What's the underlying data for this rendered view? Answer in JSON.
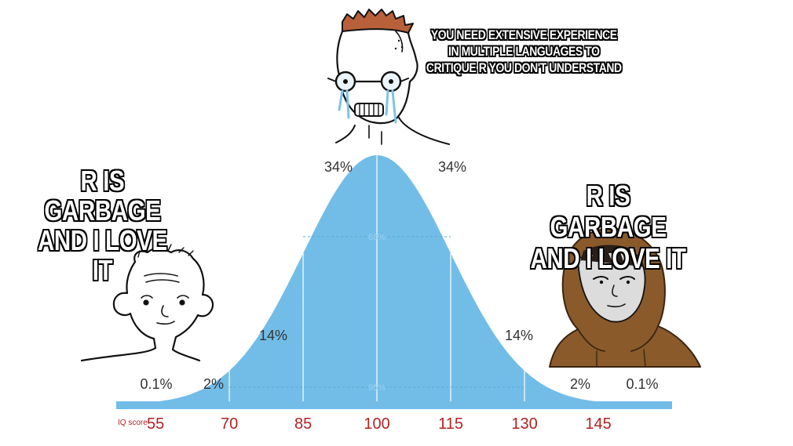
{
  "captions": {
    "left": [
      "R IS GARBAGE",
      "AND I LOVE IT"
    ],
    "right": [
      "R IS GARBAGE",
      "AND I LOVE IT"
    ],
    "top": [
      "YOU NEED EXTENSIVE EXPERIENCE",
      "IN MULTIPLE LANGUAGES TO",
      "CRITIQUE R YOU DON'T UNDERSTAND"
    ]
  },
  "chart_data": {
    "type": "area",
    "title": "",
    "xlabel": "IQ score",
    "ylabel": "",
    "x_ticks": [
      55,
      70,
      85,
      100,
      115,
      130,
      145
    ],
    "xlim": [
      47,
      160
    ],
    "distribution": {
      "mean": 100,
      "sd": 15
    },
    "segment_labels": [
      {
        "text": "0.1%",
        "between": [
          40,
          55
        ]
      },
      {
        "text": "2%",
        "between": [
          55,
          70
        ]
      },
      {
        "text": "14%",
        "between": [
          70,
          85
        ]
      },
      {
        "text": "34%",
        "between": [
          85,
          100
        ]
      },
      {
        "text": "34%",
        "between": [
          100,
          115
        ]
      },
      {
        "text": "14%",
        "between": [
          115,
          130
        ]
      },
      {
        "text": "2%",
        "between": [
          130,
          145
        ]
      },
      {
        "text": "0.1%",
        "between": [
          145,
          160
        ]
      }
    ],
    "interval_labels": [
      {
        "text": "68%",
        "range": [
          85,
          115
        ]
      },
      {
        "text": "95%",
        "range": [
          70,
          130
        ]
      }
    ],
    "grid": false,
    "colors": {
      "fill": "#72bde8",
      "ticks": "#b22222",
      "labels": "#333333",
      "inner": "#9dd3f1"
    }
  },
  "characters": {
    "left": "wojak-simple-face",
    "top": "crying-soyjak-glasses",
    "right": "hooded-figure"
  },
  "colors": {
    "hood": "#8a5a2b",
    "hair_top": "#b8603a",
    "tears": "#7ec3e8"
  }
}
